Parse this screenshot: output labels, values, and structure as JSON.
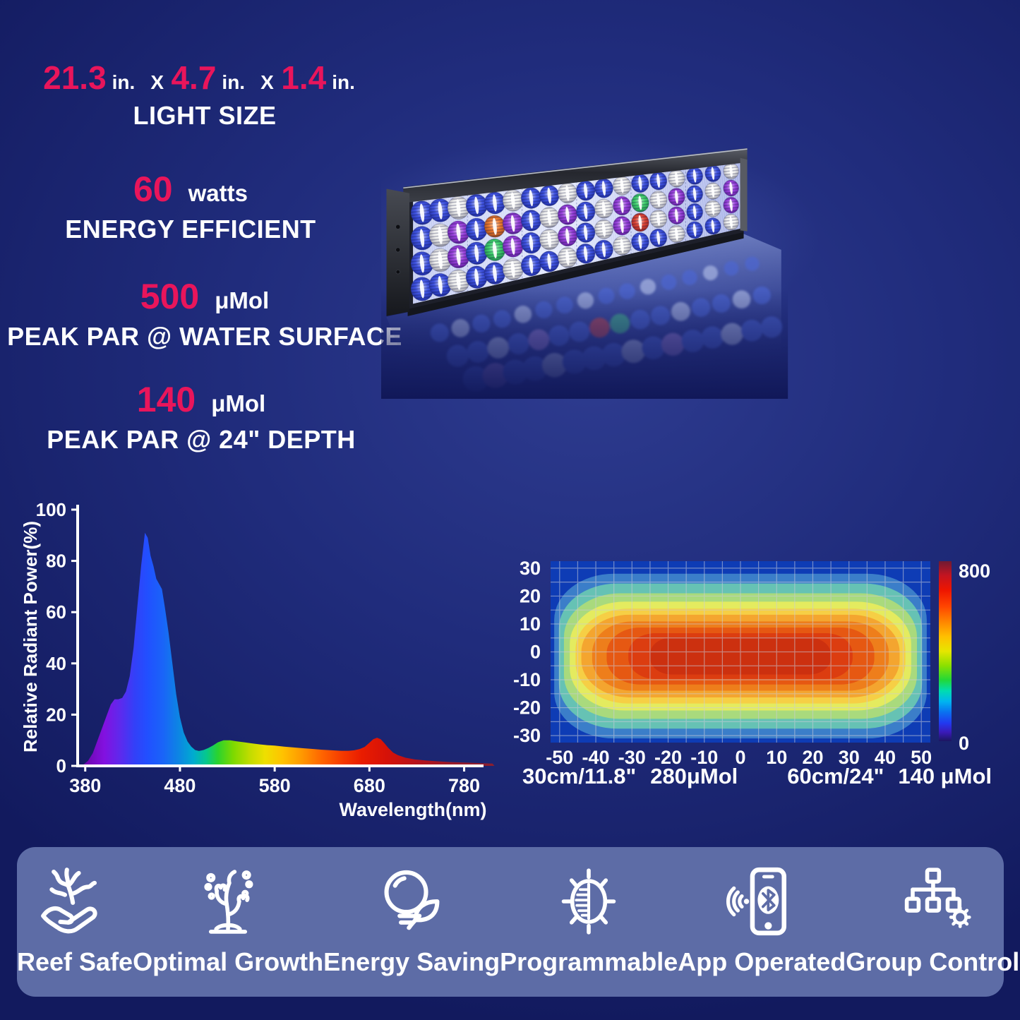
{
  "page": {
    "bg_center": "#2e3c90",
    "bg_edge": "#121a5e",
    "accent_color": "#e9155b",
    "text_color": "#ffffff"
  },
  "specs": {
    "size": {
      "v1": "21.3",
      "u1": "in.",
      "x1": "X",
      "v2": "4.7",
      "u2": "in.",
      "x2": "X",
      "v3": "1.4",
      "u3": "in.",
      "label": "LIGHT SIZE"
    },
    "power": {
      "value": "60",
      "unit": "watts",
      "label": "ENERGY EFFICIENT"
    },
    "par_surface": {
      "value": "500",
      "unit": "μMol",
      "label": "PEAK PAR @ WATER SURFACE"
    },
    "par_depth": {
      "value": "140",
      "unit": "μMol",
      "label": "PEAK PAR @ 24\" DEPTH"
    }
  },
  "fixture": {
    "panel_rows": [
      "bbwbbwbbwbbwbbwbbw",
      "bwpbopbwpbwpgwpbwp",
      "bwpbgpbwpbwprwpbwp",
      "bbwbbwbbwbbwbbwbbw"
    ],
    "reflection_rows": [
      "bwbbwbbwbbwbbwbb",
      "bbwbpbbrgbbwbbwb",
      "bpbbwbbbwbpbbwbb"
    ],
    "palette": {
      "b": "#2e44e2",
      "w": "#f2f2ef",
      "p": "#9330dc",
      "o": "#f07018",
      "g": "#2fd060",
      "r": "#e03420"
    },
    "reflection_palette": {
      "b": "#4b66d6",
      "w": "#b6c2ea",
      "p": "#9a7fd0",
      "o": "#d07844",
      "g": "#46c08a",
      "r": "#cc4848"
    }
  },
  "chart_data": [
    {
      "type": "area",
      "name": "led-spectrum",
      "xlabel": "Wavelength(nm)",
      "ylabel": "Relative Radiant Power(%)",
      "xlim": [
        370,
        815
      ],
      "ylim": [
        0,
        100
      ],
      "xticks": [
        380,
        480,
        580,
        680,
        780
      ],
      "yticks": [
        0,
        20,
        40,
        60,
        80,
        100
      ],
      "grid": false,
      "points": [
        [
          370,
          0
        ],
        [
          378,
          0.5
        ],
        [
          383,
          2
        ],
        [
          388,
          5
        ],
        [
          393,
          10
        ],
        [
          398,
          15
        ],
        [
          403,
          20
        ],
        [
          407,
          24
        ],
        [
          411,
          26
        ],
        [
          415,
          26
        ],
        [
          419,
          26.5
        ],
        [
          423,
          29
        ],
        [
          427,
          35
        ],
        [
          431,
          46
        ],
        [
          435,
          62
        ],
        [
          439,
          78
        ],
        [
          443,
          91
        ],
        [
          446,
          89
        ],
        [
          449,
          82
        ],
        [
          452,
          78
        ],
        [
          455,
          73
        ],
        [
          458,
          71
        ],
        [
          461,
          69
        ],
        [
          464,
          62
        ],
        [
          468,
          52
        ],
        [
          472,
          40
        ],
        [
          476,
          28
        ],
        [
          480,
          19
        ],
        [
          484,
          13
        ],
        [
          488,
          9.5
        ],
        [
          492,
          7.5
        ],
        [
          496,
          6.2
        ],
        [
          500,
          5.8
        ],
        [
          505,
          6.2
        ],
        [
          510,
          7
        ],
        [
          515,
          8
        ],
        [
          520,
          9.2
        ],
        [
          526,
          10
        ],
        [
          533,
          10
        ],
        [
          540,
          9.6
        ],
        [
          548,
          9.2
        ],
        [
          556,
          8.8
        ],
        [
          564,
          8.4
        ],
        [
          572,
          8.1
        ],
        [
          580,
          7.9
        ],
        [
          590,
          7.5
        ],
        [
          600,
          7.2
        ],
        [
          610,
          6.9
        ],
        [
          620,
          6.6
        ],
        [
          630,
          6.3
        ],
        [
          640,
          6.1
        ],
        [
          650,
          5.9
        ],
        [
          658,
          5.9
        ],
        [
          664,
          6.1
        ],
        [
          670,
          6.6
        ],
        [
          675,
          7.4
        ],
        [
          680,
          9
        ],
        [
          684,
          10.4
        ],
        [
          688,
          11
        ],
        [
          692,
          10.4
        ],
        [
          696,
          8.8
        ],
        [
          700,
          7
        ],
        [
          705,
          5.2
        ],
        [
          710,
          4.2
        ],
        [
          718,
          3.2
        ],
        [
          728,
          2.5
        ],
        [
          740,
          2.1
        ],
        [
          752,
          1.8
        ],
        [
          766,
          1.5
        ],
        [
          780,
          1.3
        ],
        [
          795,
          1.1
        ],
        [
          810,
          0.9
        ]
      ],
      "fill_gradient": [
        [
          380,
          "#6d07ad"
        ],
        [
          400,
          "#8311e0"
        ],
        [
          418,
          "#5b2bee"
        ],
        [
          432,
          "#3340f8"
        ],
        [
          446,
          "#2150ff"
        ],
        [
          462,
          "#1a64f8"
        ],
        [
          478,
          "#0d84e4"
        ],
        [
          494,
          "#00abd0"
        ],
        [
          508,
          "#06c88c"
        ],
        [
          520,
          "#2bd32e"
        ],
        [
          536,
          "#7cd900"
        ],
        [
          554,
          "#c2dc00"
        ],
        [
          570,
          "#eedf00"
        ],
        [
          588,
          "#ffc300"
        ],
        [
          608,
          "#ff9a00"
        ],
        [
          630,
          "#ff6400"
        ],
        [
          652,
          "#f53900"
        ],
        [
          672,
          "#e91c00"
        ],
        [
          698,
          "#d61208"
        ],
        [
          730,
          "#b5121c"
        ],
        [
          768,
          "#991a2a"
        ],
        [
          810,
          "#8a1e30"
        ]
      ]
    },
    {
      "type": "heatmap",
      "name": "par-distribution",
      "xlim": [
        -52.5,
        52.5
      ],
      "ylim": [
        -32.5,
        32.5
      ],
      "grid_step": 5,
      "xticks": [
        -50,
        -40,
        -30,
        -20,
        -10,
        0,
        10,
        20,
        30,
        40,
        50
      ],
      "yticks": [
        30,
        20,
        10,
        0,
        -10,
        -20,
        -30
      ],
      "plot_bg": "#0e3cb5",
      "grid_color": "#c9ccd8",
      "bands": [
        {
          "a": 51.5,
          "b": 29.5,
          "c": "#3b7ec9"
        },
        {
          "a": 50.2,
          "b": 26.0,
          "c": "#66c2b4"
        },
        {
          "a": 48.8,
          "b": 22.5,
          "c": "#a9da7d"
        },
        {
          "a": 47.2,
          "b": 19.5,
          "c": "#e4eb5f"
        },
        {
          "a": 45.6,
          "b": 17.0,
          "c": "#f6cf45"
        },
        {
          "a": 44.0,
          "b": 14.8,
          "c": "#f4a52f"
        },
        {
          "a": 41.0,
          "b": 12.4,
          "c": "#ee7e1b"
        },
        {
          "a": 37.0,
          "b": 10.2,
          "c": "#e65812"
        },
        {
          "a": 31.0,
          "b": 8.2,
          "c": "#dc3d10"
        },
        {
          "a": 25.0,
          "b": 6.6,
          "c": "#cc300f"
        }
      ],
      "colorbar": {
        "min": 0,
        "max": 800,
        "top_label": "800",
        "bottom_label": "0",
        "stops": [
          [
            0,
            "#1c1660"
          ],
          [
            0.05,
            "#3a1ab8"
          ],
          [
            0.1,
            "#2238f0"
          ],
          [
            0.16,
            "#0a70f0"
          ],
          [
            0.22,
            "#00b4f0"
          ],
          [
            0.28,
            "#00dcb0"
          ],
          [
            0.34,
            "#22d838"
          ],
          [
            0.42,
            "#8ce000"
          ],
          [
            0.5,
            "#e6e600"
          ],
          [
            0.58,
            "#ffc000"
          ],
          [
            0.66,
            "#ff8800"
          ],
          [
            0.75,
            "#ff4400"
          ],
          [
            0.84,
            "#ee1500"
          ],
          [
            0.92,
            "#c41420"
          ],
          [
            1,
            "#6e1a34"
          ]
        ]
      },
      "caption": {
        "d1": "30cm/11.8\"",
        "v1": "280μMol",
        "d2": "60cm/24\"",
        "v2": "140 μMol"
      }
    }
  ],
  "features": {
    "bg": "#5d6ca6",
    "items": [
      {
        "icon": "reef-safe-icon",
        "label": "Reef Safe"
      },
      {
        "icon": "optimal-growth-icon",
        "label": "Optimal Growth"
      },
      {
        "icon": "energy-saving-icon",
        "label": "Energy Saving"
      },
      {
        "icon": "programmable-icon",
        "label": "Programmable"
      },
      {
        "icon": "app-operated-icon",
        "label": "App Operated"
      },
      {
        "icon": "group-control-icon",
        "label": "Group Control"
      }
    ]
  }
}
